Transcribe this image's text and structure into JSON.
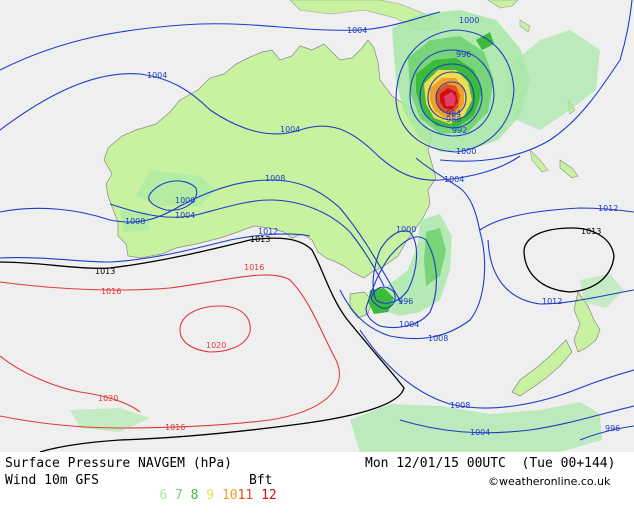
{
  "footer": {
    "title": "Surface Pressure NAVGEM (hPa)",
    "datetime": "Mon 12/01/15 00UTC  (Tue 00+144)",
    "wind_label": "Wind 10m GFS",
    "bft_values": [
      "6",
      "7",
      "8",
      "9",
      "10",
      "11",
      "12"
    ],
    "bft_colors": [
      "#a6e8a6",
      "#78d478",
      "#3cba3c",
      "#f0dc50",
      "#f0a028",
      "#e05020",
      "#d01010"
    ],
    "bft_unit": "Bft",
    "credit": "©weatheronline.co.uk"
  },
  "map": {
    "colors": {
      "sea": "#efefef",
      "land": "#c8f2a0",
      "isobar_low": "#1e3cc8",
      "isobar_mid": "#000000",
      "isobar_high": "#e03a3a"
    },
    "isobar_labels": {
      "l1000_nne": "1000",
      "l1004_top": "1004",
      "l1004_w": "1004",
      "l996_cyc": "996",
      "l1004_mid": "1004",
      "l1000_mid": "1000",
      "l1004_mid2": "1004",
      "l1008_mid": "1008",
      "l1008_w": "1008",
      "l1012_se": "1012",
      "l1012_w": "1012",
      "l1013_a": "1013",
      "l1013_b": "1013",
      "l1013_east": "1013",
      "l1016_a": "1016",
      "l1016_b": "1016",
      "l1016_c": "1016",
      "l1020_a": "1020",
      "l1020_b": "1020",
      "l1000_e": "1000",
      "l1004_e": "1004",
      "l996_se": "996",
      "l1004_se": "1004",
      "l1008_se": "1008",
      "l1000_cyc": "1000",
      "l1004_ne": "1004",
      "l1012_e": "1012",
      "l1008_s": "1008",
      "l1004_s": "1004",
      "l996_s": "996",
      "l992_cyc": "992",
      "l988_cyc": "988",
      "l984_cyc": "984"
    }
  }
}
